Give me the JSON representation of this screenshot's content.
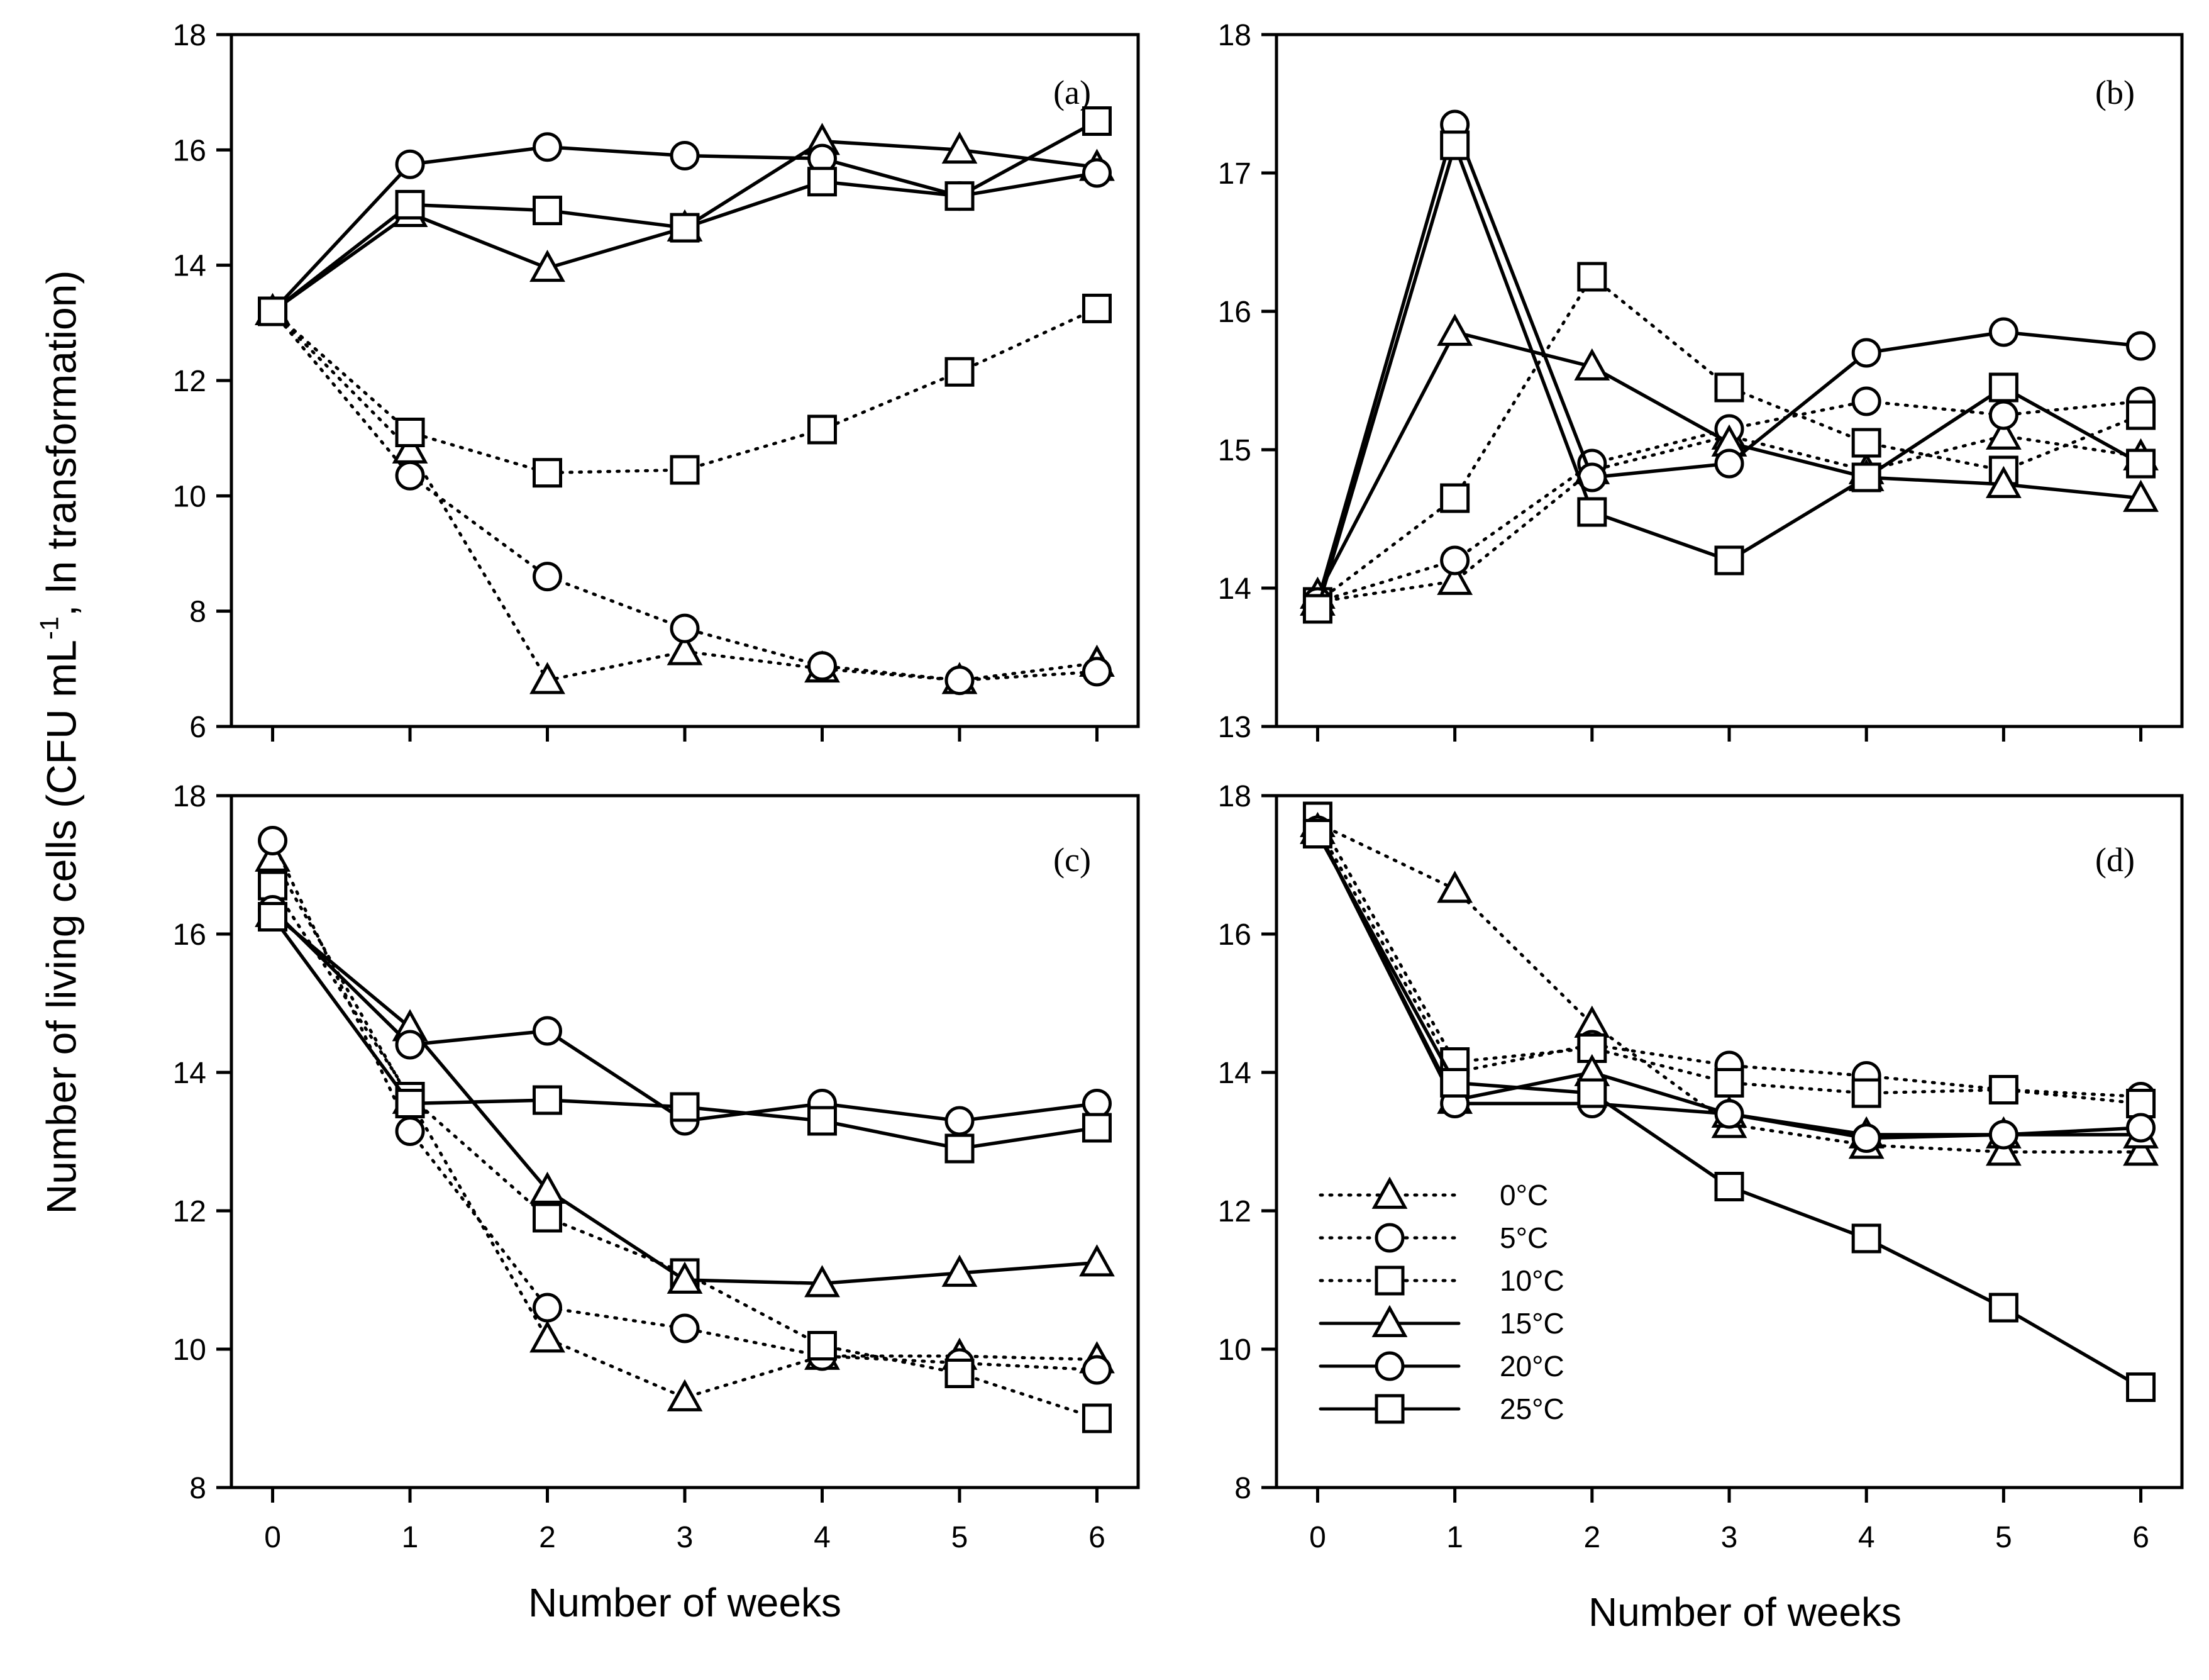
{
  "figure": {
    "ylabel_main": "Number of living cells (CFU mL",
    "ylabel_sup": "-1",
    "ylabel_tail": ", ln transformation)"
  },
  "legend": [
    {
      "label": "0°C",
      "marker": "triangle",
      "style": "dotted"
    },
    {
      "label": "5°C",
      "marker": "circle",
      "style": "dotted"
    },
    {
      "label": "10°C",
      "marker": "square",
      "style": "dotted"
    },
    {
      "label": "15°C",
      "marker": "triangle",
      "style": "solid"
    },
    {
      "label": "20°C",
      "marker": "circle",
      "style": "solid"
    },
    {
      "label": "25°C",
      "marker": "square",
      "style": "solid"
    }
  ],
  "chart_data": [
    {
      "type": "line",
      "panel_label": "(a)",
      "xlabel": "Number of weeks",
      "x": [
        0,
        1,
        2,
        3,
        4,
        5,
        6
      ],
      "xlim": [
        -0.3,
        6.3
      ],
      "ylim": [
        6,
        18
      ],
      "yticks": [
        6,
        8,
        10,
        12,
        14,
        16,
        18
      ],
      "series": [
        {
          "name": "0°C",
          "values": [
            13.2,
            10.8,
            6.8,
            7.3,
            7.0,
            6.8,
            7.1
          ]
        },
        {
          "name": "5°C",
          "values": [
            13.2,
            10.35,
            8.6,
            7.7,
            7.05,
            6.8,
            6.95
          ]
        },
        {
          "name": "10°C",
          "values": [
            13.2,
            11.1,
            10.4,
            10.45,
            11.15,
            12.15,
            13.25
          ]
        },
        {
          "name": "15°C",
          "values": [
            13.2,
            14.9,
            13.95,
            14.65,
            16.15,
            16.0,
            15.7
          ]
        },
        {
          "name": "20°C",
          "values": [
            13.2,
            15.75,
            16.05,
            15.9,
            15.85,
            15.2,
            15.6
          ]
        },
        {
          "name": "25°C",
          "values": [
            13.2,
            15.05,
            14.95,
            14.65,
            15.45,
            15.2,
            16.5
          ]
        }
      ]
    },
    {
      "type": "line",
      "panel_label": "(b)",
      "xlabel": "Number of weeks",
      "x": [
        0,
        1,
        2,
        3,
        4,
        5,
        6
      ],
      "xlim": [
        -0.3,
        6.3
      ],
      "ylim": [
        13,
        18
      ],
      "yticks": [
        13,
        14,
        15,
        16,
        17,
        18
      ],
      "series": [
        {
          "name": "0°C",
          "values": [
            13.9,
            14.05,
            14.85,
            15.1,
            14.85,
            15.1,
            14.95
          ]
        },
        {
          "name": "5°C",
          "values": [
            13.9,
            14.2,
            14.9,
            15.15,
            15.35,
            15.25,
            15.35
          ]
        },
        {
          "name": "10°C",
          "values": [
            13.9,
            14.65,
            16.25,
            15.45,
            15.05,
            14.85,
            15.25
          ]
        },
        {
          "name": "15°C",
          "values": [
            13.95,
            15.85,
            15.6,
            15.05,
            14.8,
            14.75,
            14.65
          ]
        },
        {
          "name": "20°C",
          "values": [
            13.9,
            17.35,
            14.8,
            14.9,
            15.7,
            15.85,
            15.75
          ]
        },
        {
          "name": "25°C",
          "values": [
            13.85,
            17.2,
            14.55,
            14.2,
            14.8,
            15.45,
            14.9
          ]
        }
      ]
    },
    {
      "type": "line",
      "panel_label": "(c)",
      "xlabel": "Number of weeks",
      "x": [
        0,
        1,
        2,
        3,
        4,
        5,
        6
      ],
      "xlim": [
        -0.3,
        6.3
      ],
      "ylim": [
        8,
        18
      ],
      "yticks": [
        8,
        10,
        12,
        14,
        16,
        18
      ],
      "series": [
        {
          "name": "0°C",
          "values": [
            17.1,
            13.6,
            10.15,
            9.3,
            9.9,
            9.9,
            9.85
          ]
        },
        {
          "name": "5°C",
          "values": [
            17.35,
            13.15,
            10.6,
            10.3,
            9.9,
            9.8,
            9.7
          ]
        },
        {
          "name": "10°C",
          "values": [
            16.7,
            13.65,
            11.9,
            11.1,
            10.05,
            9.65,
            9.0
          ]
        },
        {
          "name": "15°C",
          "values": [
            16.3,
            14.65,
            12.3,
            11.0,
            10.95,
            11.1,
            11.25
          ]
        },
        {
          "name": "20°C",
          "values": [
            16.35,
            14.4,
            14.6,
            13.3,
            13.55,
            13.3,
            13.55
          ]
        },
        {
          "name": "25°C",
          "values": [
            16.25,
            13.55,
            13.6,
            13.5,
            13.3,
            12.9,
            13.2
          ]
        }
      ]
    },
    {
      "type": "line",
      "panel_label": "(d)",
      "xlabel": "Number of weeks",
      "x": [
        0,
        1,
        2,
        3,
        4,
        5,
        6
      ],
      "xlim": [
        -0.3,
        6.3
      ],
      "ylim": [
        8,
        18
      ],
      "yticks": [
        8,
        10,
        12,
        14,
        16,
        18
      ],
      "series": [
        {
          "name": "0°C",
          "values": [
            17.6,
            16.65,
            14.7,
            13.25,
            12.95,
            12.85,
            12.85
          ]
        },
        {
          "name": "5°C",
          "values": [
            17.55,
            14.0,
            14.4,
            14.1,
            13.95,
            13.75,
            13.65
          ]
        },
        {
          "name": "10°C",
          "values": [
            17.7,
            14.15,
            14.35,
            13.85,
            13.7,
            13.75,
            13.55
          ]
        },
        {
          "name": "15°C",
          "values": [
            17.5,
            13.6,
            14.0,
            13.4,
            13.1,
            13.1,
            13.1
          ]
        },
        {
          "name": "20°C",
          "values": [
            17.5,
            13.55,
            13.55,
            13.4,
            13.05,
            13.1,
            13.2
          ]
        },
        {
          "name": "25°C",
          "values": [
            17.45,
            13.85,
            13.7,
            12.35,
            11.6,
            10.6,
            9.45
          ]
        }
      ]
    }
  ]
}
